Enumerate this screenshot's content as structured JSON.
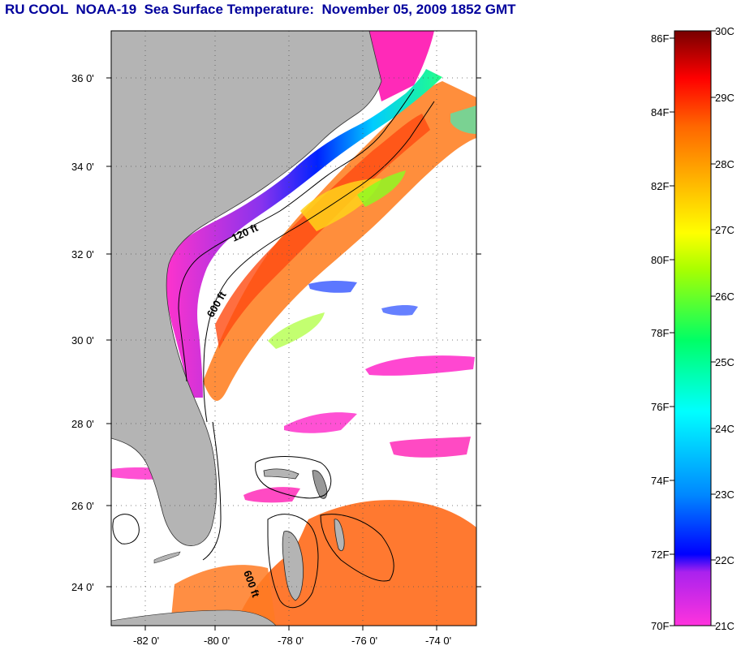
{
  "title": "RU COOL  NOAA-19  Sea Surface Temperature:  November 05, 2009 1852 GMT",
  "map": {
    "lat_labels": [
      "36 0'",
      "34 0'",
      "32 0'",
      "30 0'",
      "28 0'",
      "26 0'",
      "24 0'"
    ],
    "lon_labels": [
      "-82 0'",
      "-80 0'",
      "-78 0'",
      "-76 0'",
      "-74 0'"
    ],
    "contour_labels": [
      "120 ft",
      "600 ft",
      "600 ft"
    ]
  },
  "colorbar": {
    "fahrenheit_labels": [
      "86F",
      "84F",
      "82F",
      "80F",
      "78F",
      "76F",
      "74F",
      "72F",
      "70F"
    ],
    "celsius_labels": [
      "30C",
      "29C",
      "28C",
      "27C",
      "26C",
      "25C",
      "24C",
      "23C",
      "22C",
      "21C"
    ],
    "colors": [
      "#7a0000",
      "#ff0000",
      "#ff7a00",
      "#ffff00",
      "#00ff55",
      "#00ffff",
      "#0000ff",
      "#ff22cc"
    ]
  },
  "colors": {
    "land": "#b4b4b4",
    "title": "#00009c"
  }
}
